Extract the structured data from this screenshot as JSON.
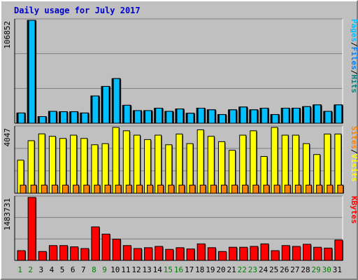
{
  "title": "Daily usage for July 2017",
  "colors": {
    "pages": "#00c0ff",
    "files": "#0080ff",
    "hits": "#008080",
    "sites": "#ff8000",
    "visits": "#ffff00",
    "kbytes": "#ff0000",
    "weekend_day": "#008000",
    "weekday": "#000000"
  },
  "chart_data": [
    {
      "type": "bar",
      "panel": "top",
      "ylabel_max": "106852",
      "ylim": [
        0,
        106852
      ],
      "grid": true,
      "legend": [
        {
          "name": "Pages",
          "color": "#00c0ff"
        },
        {
          "name": "Files",
          "color": "#0080ff"
        },
        {
          "name": "Hits",
          "color": "#008080"
        }
      ],
      "categories": [
        "1",
        "2",
        "3",
        "4",
        "5",
        "6",
        "7",
        "8",
        "9",
        "10",
        "11",
        "12",
        "13",
        "14",
        "15",
        "16",
        "17",
        "18",
        "19",
        "20",
        "21",
        "22",
        "23",
        "24",
        "25",
        "26",
        "27",
        "28",
        "29",
        "30",
        "31"
      ],
      "series": [
        {
          "name": "Hits",
          "values": [
            10600,
            106852,
            6900,
            12300,
            11900,
            11900,
            10600,
            28300,
            38200,
            46300,
            18600,
            13100,
            13100,
            15600,
            12300,
            14800,
            10300,
            15600,
            13900,
            9000,
            13900,
            16800,
            13900,
            15600,
            9000,
            15600,
            15600,
            17200,
            19000,
            12300,
            19000
          ]
        },
        {
          "name": "Files",
          "values": [
            10600,
            106852,
            6900,
            12300,
            11900,
            11900,
            10600,
            28300,
            38200,
            46300,
            18600,
            13100,
            13100,
            15600,
            12300,
            14800,
            10300,
            15600,
            13900,
            9000,
            13900,
            16800,
            13900,
            15600,
            9000,
            15600,
            15600,
            17200,
            19000,
            12300,
            19000
          ]
        },
        {
          "name": "Pages",
          "values": [
            10600,
            106852,
            6900,
            12300,
            11900,
            11900,
            10600,
            28300,
            38200,
            46300,
            18600,
            13100,
            13100,
            15600,
            12300,
            14800,
            10300,
            15600,
            13900,
            9000,
            13900,
            16800,
            13900,
            15600,
            9000,
            15600,
            15600,
            17200,
            19000,
            12300,
            19000
          ]
        }
      ]
    },
    {
      "type": "bar",
      "panel": "middle",
      "ylabel_max": "4047",
      "ylim": [
        0,
        4047
      ],
      "grid": true,
      "legend": [
        {
          "name": "Sites",
          "color": "#ff8000"
        },
        {
          "name": "Visits",
          "color": "#ffff00"
        }
      ],
      "categories": [
        "1",
        "2",
        "3",
        "4",
        "5",
        "6",
        "7",
        "8",
        "9",
        "10",
        "11",
        "12",
        "13",
        "14",
        "15",
        "16",
        "17",
        "18",
        "19",
        "20",
        "21",
        "22",
        "23",
        "24",
        "25",
        "26",
        "27",
        "28",
        "29",
        "30",
        "31"
      ],
      "series": [
        {
          "name": "Visits",
          "values": [
            2030,
            3230,
            3650,
            3500,
            3370,
            3570,
            3370,
            2980,
            3050,
            4047,
            3840,
            3570,
            3300,
            3570,
            2980,
            3640,
            3050,
            3900,
            3500,
            3170,
            2640,
            3570,
            3840,
            2260,
            4047,
            3570,
            3570,
            3050,
            2380,
            3640,
            3640
          ]
        },
        {
          "name": "Sites",
          "values": [
            500,
            500,
            500,
            500,
            500,
            500,
            500,
            500,
            500,
            500,
            500,
            500,
            500,
            500,
            500,
            500,
            500,
            500,
            500,
            500,
            500,
            500,
            500,
            500,
            500,
            500,
            500,
            500,
            500,
            500,
            500
          ]
        }
      ]
    },
    {
      "type": "bar",
      "panel": "bottom",
      "ylabel_max": "1483731",
      "ylim": [
        0,
        1483731
      ],
      "grid": true,
      "legend": [
        {
          "name": "KBytes",
          "color": "#ff0000"
        }
      ],
      "categories": [
        "1",
        "2",
        "3",
        "4",
        "5",
        "6",
        "7",
        "8",
        "9",
        "10",
        "11",
        "12",
        "13",
        "14",
        "15",
        "16",
        "17",
        "18",
        "19",
        "20",
        "21",
        "22",
        "23",
        "24",
        "25",
        "26",
        "27",
        "28",
        "29",
        "30",
        "31"
      ],
      "series": [
        {
          "name": "KBytes",
          "values": [
            230000,
            1483731,
            210000,
            350000,
            350000,
            320000,
            280000,
            790000,
            620000,
            500000,
            350000,
            280000,
            300000,
            330000,
            260000,
            300000,
            270000,
            390000,
            300000,
            210000,
            310000,
            310000,
            330000,
            390000,
            230000,
            350000,
            330000,
            380000,
            310000,
            290000,
            480000
          ]
        }
      ]
    }
  ],
  "day_labels": [
    "1",
    "2",
    "3",
    "4",
    "5",
    "6",
    "7",
    "8",
    "9",
    "10",
    "11",
    "12",
    "13",
    "14",
    "15",
    "16",
    "17",
    "18",
    "19",
    "20",
    "21",
    "22",
    "23",
    "24",
    "25",
    "26",
    "27",
    "28",
    "29",
    "30",
    "31"
  ],
  "weekend_days": [
    1,
    2,
    8,
    9,
    15,
    16,
    22,
    23,
    29,
    30
  ]
}
